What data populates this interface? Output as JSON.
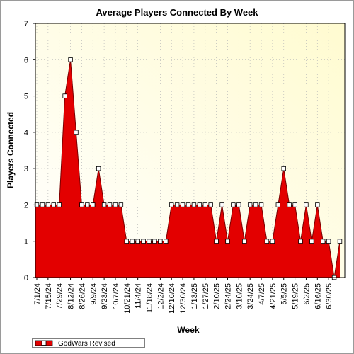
{
  "chart_data": {
    "type": "area",
    "title": "Average Players Connected By Week",
    "xlabel": "Week",
    "ylabel": "Players Connected",
    "ylim": [
      0,
      7
    ],
    "yticks": [
      0,
      1,
      2,
      3,
      4,
      5,
      6,
      7
    ],
    "grid": true,
    "legend_position": "bottom-left",
    "x_labels": [
      "7/1/24",
      "7/15/24",
      "7/29/24",
      "8/12/24",
      "8/26/24",
      "9/9/24",
      "9/23/24",
      "10/7/24",
      "10/21/24",
      "11/4/24",
      "11/18/24",
      "12/2/24",
      "12/16/24",
      "12/30/24",
      "1/13/25",
      "1/27/25",
      "2/10/25",
      "2/24/25",
      "3/10/25",
      "3/24/25",
      "4/7/25",
      "4/21/25",
      "5/5/25",
      "5/19/25",
      "6/2/25",
      "6/16/25",
      "6/30/25"
    ],
    "series": [
      {
        "name": "GodWars Revised",
        "color": "#e30000",
        "values": [
          2,
          2,
          2,
          2,
          2,
          5,
          6,
          4,
          2,
          2,
          2,
          3,
          2,
          2,
          2,
          2,
          1,
          1,
          1,
          1,
          1,
          1,
          1,
          1,
          2,
          2,
          2,
          2,
          2,
          2,
          2,
          2,
          1,
          2,
          1,
          2,
          2,
          1,
          2,
          2,
          2,
          1,
          1,
          2,
          3,
          2,
          2,
          1,
          2,
          1,
          2,
          1,
          1,
          0,
          1
        ]
      }
    ]
  }
}
